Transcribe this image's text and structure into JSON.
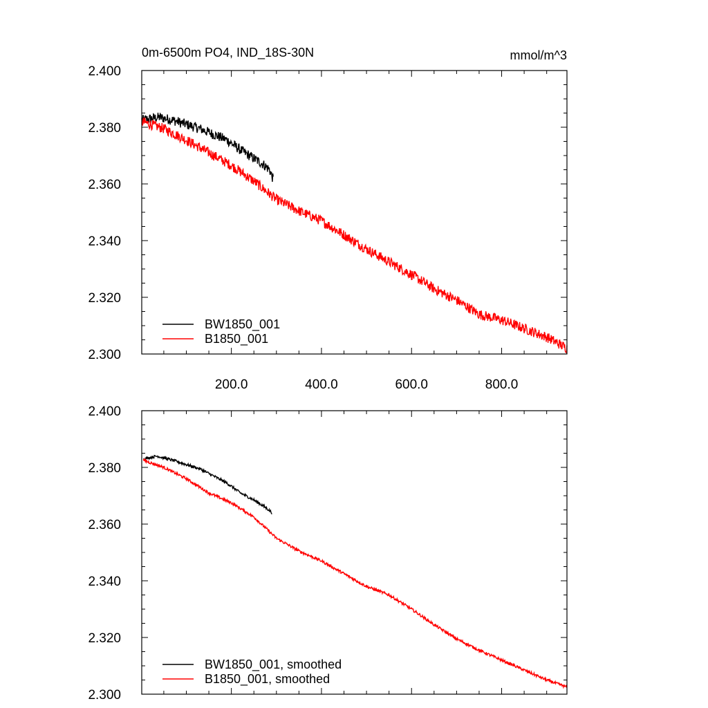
{
  "chart_data": [
    {
      "type": "line",
      "title": "0m-6500m PO4, IND_18S-30N",
      "units": "mmol/m^3",
      "xlim": [
        1,
        945
      ],
      "ylim": [
        2.3,
        2.4
      ],
      "x_ticks": [
        200.0,
        400.0,
        600.0,
        800.0
      ],
      "x_tick_labels": [
        "200.0",
        "400.0",
        "600.0",
        "800.0"
      ],
      "y_ticks": [
        2.3,
        2.32,
        2.34,
        2.36,
        2.38,
        2.4
      ],
      "y_tick_labels": [
        "2.300",
        "2.320",
        "2.340",
        "2.360",
        "2.380",
        "2.400"
      ],
      "legend_position": "bottom-left",
      "series": [
        {
          "name": "BW1850_001",
          "color": "#000000",
          "noise": 0.0018,
          "points": [
            [
              1,
              2.3825
            ],
            [
              40,
              2.3835
            ],
            [
              70,
              2.3825
            ],
            [
              100,
              2.381
            ],
            [
              130,
              2.3795
            ],
            [
              160,
              2.3775
            ],
            [
              190,
              2.3755
            ],
            [
              220,
              2.372
            ],
            [
              250,
              2.369
            ],
            [
              270,
              2.367
            ],
            [
              285,
              2.365
            ],
            [
              293,
              2.3615
            ]
          ]
        },
        {
          "name": "B1850_001",
          "color": "#ff0000",
          "noise": 0.0018,
          "points": [
            [
              1,
              2.382
            ],
            [
              50,
              2.3795
            ],
            [
              100,
              2.3755
            ],
            [
              150,
              2.371
            ],
            [
              200,
              2.3665
            ],
            [
              250,
              2.361
            ],
            [
              300,
              2.3545
            ],
            [
              350,
              2.3505
            ],
            [
              400,
              2.347
            ],
            [
              450,
              2.342
            ],
            [
              500,
              2.337
            ],
            [
              550,
              2.3325
            ],
            [
              600,
              2.328
            ],
            [
              650,
              2.323
            ],
            [
              700,
              2.319
            ],
            [
              750,
              2.314
            ],
            [
              800,
              2.312
            ],
            [
              850,
              2.309
            ],
            [
              900,
              2.306
            ],
            [
              945,
              2.302
            ]
          ]
        }
      ]
    },
    {
      "type": "line",
      "xlim": [
        1,
        945
      ],
      "ylim": [
        2.3,
        2.4
      ],
      "y_ticks": [
        2.3,
        2.32,
        2.34,
        2.36,
        2.38,
        2.4
      ],
      "y_tick_labels": [
        "2.300",
        "2.320",
        "2.340",
        "2.360",
        "2.380",
        "2.400"
      ],
      "legend_position": "bottom-left",
      "series": [
        {
          "name": "BW1850_001, smoothed",
          "color": "#000000",
          "noise": 0.0005,
          "points": [
            [
              5,
              2.383
            ],
            [
              35,
              2.384
            ],
            [
              70,
              2.3825
            ],
            [
              100,
              2.381
            ],
            [
              130,
              2.3795
            ],
            [
              160,
              2.377
            ],
            [
              190,
              2.3745
            ],
            [
              220,
              2.371
            ],
            [
              250,
              2.3685
            ],
            [
              270,
              2.3665
            ],
            [
              283,
              2.365
            ],
            [
              290,
              2.364
            ]
          ]
        },
        {
          "name": "B1850_001, smoothed",
          "color": "#ff0000",
          "noise": 0.0005,
          "points": [
            [
              5,
              2.3825
            ],
            [
              50,
              2.38
            ],
            [
              100,
              2.376
            ],
            [
              150,
              2.371
            ],
            [
              200,
              2.3675
            ],
            [
              250,
              2.3625
            ],
            [
              300,
              2.355
            ],
            [
              350,
              2.3505
            ],
            [
              400,
              2.347
            ],
            [
              450,
              2.3425
            ],
            [
              500,
              2.338
            ],
            [
              550,
              2.335
            ],
            [
              600,
              2.33
            ],
            [
              650,
              2.3245
            ],
            [
              700,
              2.3195
            ],
            [
              750,
              2.3155
            ],
            [
              800,
              2.312
            ],
            [
              850,
              2.3085
            ],
            [
              900,
              2.305
            ],
            [
              945,
              2.3025
            ]
          ]
        }
      ]
    }
  ]
}
